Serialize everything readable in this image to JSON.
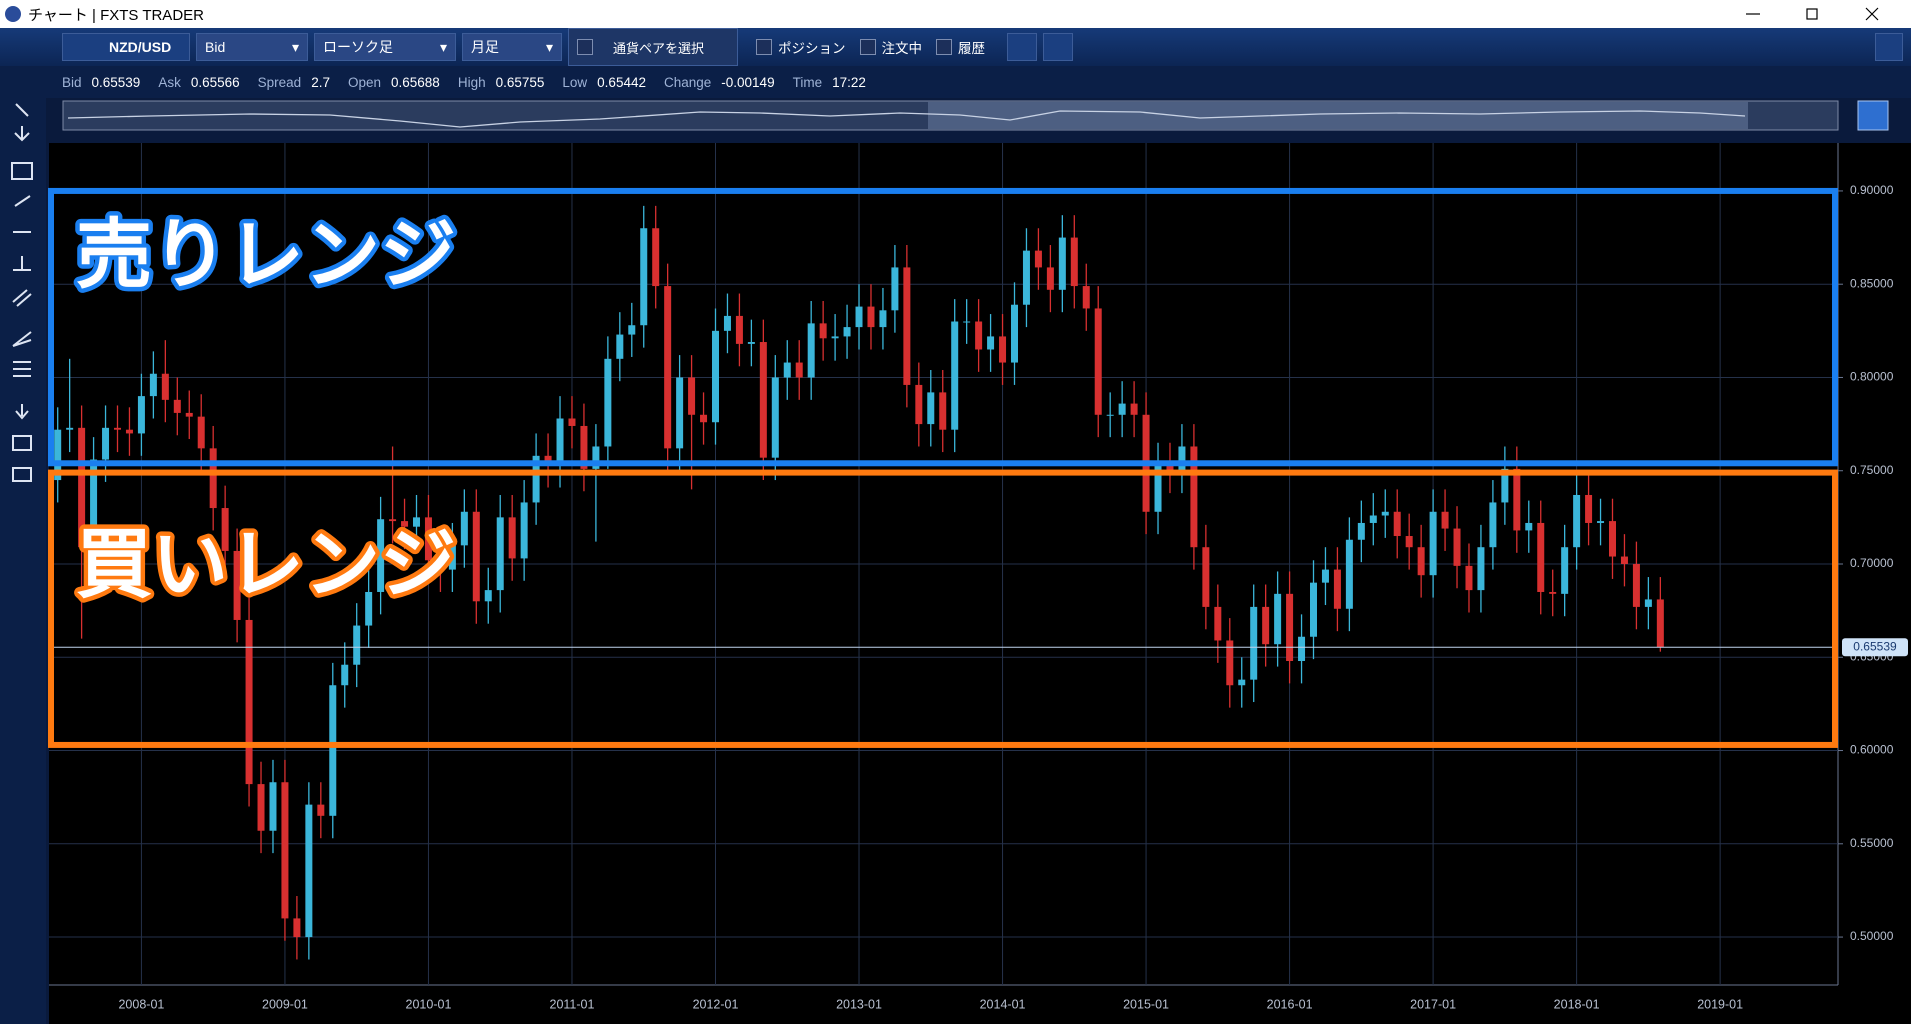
{
  "window": {
    "title": "チャート | FXTS TRADER"
  },
  "toolbar": {
    "pair": "NZD/USD",
    "price_type": "Bid",
    "chart_type": "ローソク足",
    "period": "月足",
    "select_pair": "通貨ペアを選択",
    "filters": [
      "ポジション",
      "注文中",
      "履歴"
    ]
  },
  "quote": [
    {
      "label": "Bid",
      "value": 0.65539
    },
    {
      "label": "Ask",
      "value": 0.65566
    },
    {
      "label": "Spread",
      "value": 2.7
    },
    {
      "label": "Open",
      "value": 0.65688
    },
    {
      "label": "High",
      "value": 0.65755
    },
    {
      "label": "Low",
      "value": 0.65442
    },
    {
      "label": "Change",
      "value": -0.00149
    },
    {
      "label": "Time",
      "value": "17:22"
    }
  ],
  "chart_data": {
    "type": "candlestick",
    "x": [
      "2007-06",
      "2007-07",
      "2007-08",
      "2007-09",
      "2007-10",
      "2007-11",
      "2007-12",
      "2008-01",
      "2008-02",
      "2008-03",
      "2008-04",
      "2008-05",
      "2008-06",
      "2008-07",
      "2008-08",
      "2008-09",
      "2008-10",
      "2008-11",
      "2008-12",
      "2009-01",
      "2009-02",
      "2009-03",
      "2009-04",
      "2009-05",
      "2009-06",
      "2009-07",
      "2009-08",
      "2009-09",
      "2009-10",
      "2009-11",
      "2009-12",
      "2010-01",
      "2010-02",
      "2010-03",
      "2010-04",
      "2010-05",
      "2010-06",
      "2010-07",
      "2010-08",
      "2010-09",
      "2010-10",
      "2010-11",
      "2010-12",
      "2011-01",
      "2011-02",
      "2011-03",
      "2011-04",
      "2011-05",
      "2011-06",
      "2011-07",
      "2011-08",
      "2011-09",
      "2011-10",
      "2011-11",
      "2011-12",
      "2012-01",
      "2012-02",
      "2012-03",
      "2012-04",
      "2012-05",
      "2012-06",
      "2012-07",
      "2012-08",
      "2012-09",
      "2012-10",
      "2012-11",
      "2012-12",
      "2013-01",
      "2013-02",
      "2013-03",
      "2013-04",
      "2013-05",
      "2013-06",
      "2013-07",
      "2013-08",
      "2013-09",
      "2013-10",
      "2013-11",
      "2013-12",
      "2014-01",
      "2014-02",
      "2014-03",
      "2014-04",
      "2014-05",
      "2014-06",
      "2014-07",
      "2014-08",
      "2014-09",
      "2014-10",
      "2014-11",
      "2014-12",
      "2015-01",
      "2015-02",
      "2015-03",
      "2015-04",
      "2015-05",
      "2015-06",
      "2015-07",
      "2015-08",
      "2015-09",
      "2015-10",
      "2015-11",
      "2015-12",
      "2016-01",
      "2016-02",
      "2016-03",
      "2016-04",
      "2016-05",
      "2016-06",
      "2016-07",
      "2016-08",
      "2016-09",
      "2016-10",
      "2016-11",
      "2016-12",
      "2017-01",
      "2017-02",
      "2017-03",
      "2017-04",
      "2017-05",
      "2017-06",
      "2017-07",
      "2017-08",
      "2017-09",
      "2017-10",
      "2017-11",
      "2017-12",
      "2018-01",
      "2018-02",
      "2018-03",
      "2018-04",
      "2018-05",
      "2018-06",
      "2018-07",
      "2018-08"
    ],
    "open": [
      0.745,
      0.772,
      0.773,
      0.709,
      0.756,
      0.773,
      0.772,
      0.77,
      0.79,
      0.802,
      0.788,
      0.781,
      0.779,
      0.762,
      0.73,
      0.707,
      0.67,
      0.582,
      0.557,
      0.583,
      0.51,
      0.5,
      0.571,
      0.565,
      0.635,
      0.646,
      0.667,
      0.685,
      0.724,
      0.723,
      0.72,
      0.725,
      0.702,
      0.697,
      0.71,
      0.728,
      0.68,
      0.686,
      0.725,
      0.703,
      0.733,
      0.758,
      0.753,
      0.778,
      0.774,
      0.751,
      0.763,
      0.81,
      0.823,
      0.828,
      0.88,
      0.849,
      0.762,
      0.8,
      0.78,
      0.776,
      0.825,
      0.833,
      0.818,
      0.819,
      0.757,
      0.8,
      0.808,
      0.8,
      0.829,
      0.821,
      0.822,
      0.827,
      0.838,
      0.827,
      0.836,
      0.859,
      0.796,
      0.775,
      0.792,
      0.772,
      0.83,
      0.83,
      0.815,
      0.822,
      0.808,
      0.839,
      0.868,
      0.859,
      0.847,
      0.875,
      0.849,
      0.837,
      0.78,
      0.78,
      0.786,
      0.78,
      0.728,
      0.753,
      0.75,
      0.763,
      0.709,
      0.677,
      0.659,
      0.635,
      0.638,
      0.677,
      0.657,
      0.684,
      0.648,
      0.661,
      0.69,
      0.697,
      0.676,
      0.713,
      0.722,
      0.726,
      0.728,
      0.715,
      0.709,
      0.694,
      0.728,
      0.719,
      0.699,
      0.686,
      0.709,
      0.733,
      0.751,
      0.718,
      0.722,
      0.685,
      0.684,
      0.709,
      0.737,
      0.722,
      0.723,
      0.704,
      0.7,
      0.677,
      0.681
    ],
    "high": [
      0.784,
      0.81,
      0.785,
      0.768,
      0.785,
      0.785,
      0.784,
      0.802,
      0.814,
      0.82,
      0.8,
      0.793,
      0.791,
      0.774,
      0.742,
      0.719,
      0.682,
      0.594,
      0.595,
      0.595,
      0.522,
      0.583,
      0.583,
      0.647,
      0.658,
      0.679,
      0.697,
      0.736,
      0.763,
      0.735,
      0.737,
      0.737,
      0.714,
      0.722,
      0.74,
      0.74,
      0.698,
      0.737,
      0.737,
      0.745,
      0.77,
      0.77,
      0.79,
      0.79,
      0.786,
      0.775,
      0.822,
      0.835,
      0.84,
      0.892,
      0.892,
      0.861,
      0.812,
      0.812,
      0.792,
      0.837,
      0.845,
      0.845,
      0.831,
      0.831,
      0.812,
      0.82,
      0.82,
      0.841,
      0.841,
      0.834,
      0.839,
      0.85,
      0.85,
      0.848,
      0.871,
      0.871,
      0.808,
      0.804,
      0.804,
      0.842,
      0.842,
      0.842,
      0.834,
      0.834,
      0.851,
      0.88,
      0.88,
      0.871,
      0.887,
      0.887,
      0.861,
      0.849,
      0.792,
      0.798,
      0.798,
      0.792,
      0.765,
      0.765,
      0.775,
      0.775,
      0.721,
      0.689,
      0.671,
      0.65,
      0.689,
      0.689,
      0.696,
      0.696,
      0.673,
      0.702,
      0.709,
      0.709,
      0.725,
      0.734,
      0.738,
      0.74,
      0.74,
      0.727,
      0.721,
      0.74,
      0.74,
      0.731,
      0.711,
      0.721,
      0.745,
      0.763,
      0.763,
      0.734,
      0.734,
      0.697,
      0.721,
      0.749,
      0.749,
      0.735,
      0.735,
      0.716,
      0.712,
      0.693,
      0.693
    ],
    "low": [
      0.733,
      0.76,
      0.66,
      0.697,
      0.744,
      0.76,
      0.758,
      0.758,
      0.778,
      0.776,
      0.769,
      0.767,
      0.75,
      0.718,
      0.695,
      0.658,
      0.57,
      0.545,
      0.545,
      0.498,
      0.488,
      0.488,
      0.553,
      0.553,
      0.623,
      0.634,
      0.655,
      0.673,
      0.711,
      0.708,
      0.708,
      0.69,
      0.685,
      0.685,
      0.698,
      0.668,
      0.668,
      0.674,
      0.691,
      0.691,
      0.721,
      0.741,
      0.741,
      0.762,
      0.739,
      0.712,
      0.751,
      0.798,
      0.811,
      0.816,
      0.837,
      0.75,
      0.75,
      0.74,
      0.764,
      0.764,
      0.813,
      0.806,
      0.806,
      0.745,
      0.745,
      0.788,
      0.788,
      0.788,
      0.809,
      0.809,
      0.81,
      0.815,
      0.815,
      0.815,
      0.824,
      0.784,
      0.763,
      0.763,
      0.76,
      0.76,
      0.818,
      0.803,
      0.803,
      0.796,
      0.796,
      0.827,
      0.847,
      0.835,
      0.835,
      0.837,
      0.825,
      0.768,
      0.768,
      0.768,
      0.768,
      0.716,
      0.716,
      0.738,
      0.738,
      0.697,
      0.665,
      0.647,
      0.623,
      0.623,
      0.626,
      0.645,
      0.645,
      0.636,
      0.636,
      0.649,
      0.678,
      0.664,
      0.664,
      0.701,
      0.71,
      0.714,
      0.703,
      0.697,
      0.682,
      0.682,
      0.707,
      0.687,
      0.674,
      0.674,
      0.697,
      0.721,
      0.706,
      0.706,
      0.673,
      0.672,
      0.672,
      0.697,
      0.71,
      0.71,
      0.692,
      0.688,
      0.665,
      0.665,
      0.653
    ],
    "close": [
      0.772,
      0.773,
      0.709,
      0.756,
      0.773,
      0.772,
      0.77,
      0.79,
      0.802,
      0.788,
      0.781,
      0.779,
      0.762,
      0.73,
      0.707,
      0.67,
      0.582,
      0.557,
      0.583,
      0.51,
      0.5,
      0.571,
      0.565,
      0.635,
      0.646,
      0.667,
      0.685,
      0.724,
      0.723,
      0.72,
      0.725,
      0.702,
      0.697,
      0.71,
      0.728,
      0.68,
      0.686,
      0.725,
      0.703,
      0.733,
      0.758,
      0.753,
      0.778,
      0.774,
      0.751,
      0.763,
      0.81,
      0.823,
      0.828,
      0.88,
      0.849,
      0.762,
      0.8,
      0.78,
      0.776,
      0.825,
      0.833,
      0.818,
      0.819,
      0.757,
      0.8,
      0.808,
      0.8,
      0.829,
      0.821,
      0.822,
      0.827,
      0.838,
      0.827,
      0.836,
      0.859,
      0.796,
      0.775,
      0.792,
      0.772,
      0.83,
      0.83,
      0.815,
      0.822,
      0.808,
      0.839,
      0.868,
      0.859,
      0.847,
      0.875,
      0.849,
      0.837,
      0.78,
      0.78,
      0.786,
      0.78,
      0.728,
      0.753,
      0.75,
      0.763,
      0.709,
      0.677,
      0.659,
      0.635,
      0.638,
      0.677,
      0.657,
      0.684,
      0.648,
      0.661,
      0.69,
      0.697,
      0.676,
      0.713,
      0.722,
      0.726,
      0.728,
      0.715,
      0.709,
      0.694,
      0.728,
      0.719,
      0.699,
      0.686,
      0.709,
      0.733,
      0.751,
      0.718,
      0.722,
      0.685,
      0.684,
      0.709,
      0.737,
      0.722,
      0.723,
      0.704,
      0.7,
      0.677,
      0.681,
      0.65539
    ],
    "up_color": "#3bb6da",
    "down_color": "#d83030",
    "ylim": [
      0.4743,
      0.9257
    ],
    "yticks": [
      {
        "value": 0.5,
        "label": "0.50000"
      },
      {
        "value": 0.55,
        "label": "0.55000"
      },
      {
        "value": 0.6,
        "label": "0.60000"
      },
      {
        "value": 0.65,
        "label": "0.65000"
      },
      {
        "value": 0.7,
        "label": "0.70000"
      },
      {
        "value": 0.75,
        "label": "0.75000"
      },
      {
        "value": 0.8,
        "label": "0.80000"
      },
      {
        "value": 0.85,
        "label": "0.85000"
      },
      {
        "value": 0.9,
        "label": "0.90000"
      }
    ],
    "xticks": [
      "2008-01",
      "2009-01",
      "2010-01",
      "2011-01",
      "2012-01",
      "2013-01",
      "2014-01",
      "2015-01",
      "2016-01",
      "2017-01",
      "2018-01",
      "2019-01"
    ],
    "grid": true,
    "current_price": 0.65539,
    "annotations": [
      {
        "text": "売りレンジ",
        "color": "#1a7ff0",
        "range": [
          0.754,
          0.9
        ]
      },
      {
        "text": "買いレンジ",
        "color": "#ff7a10",
        "range": [
          0.603,
          0.749
        ]
      }
    ]
  }
}
